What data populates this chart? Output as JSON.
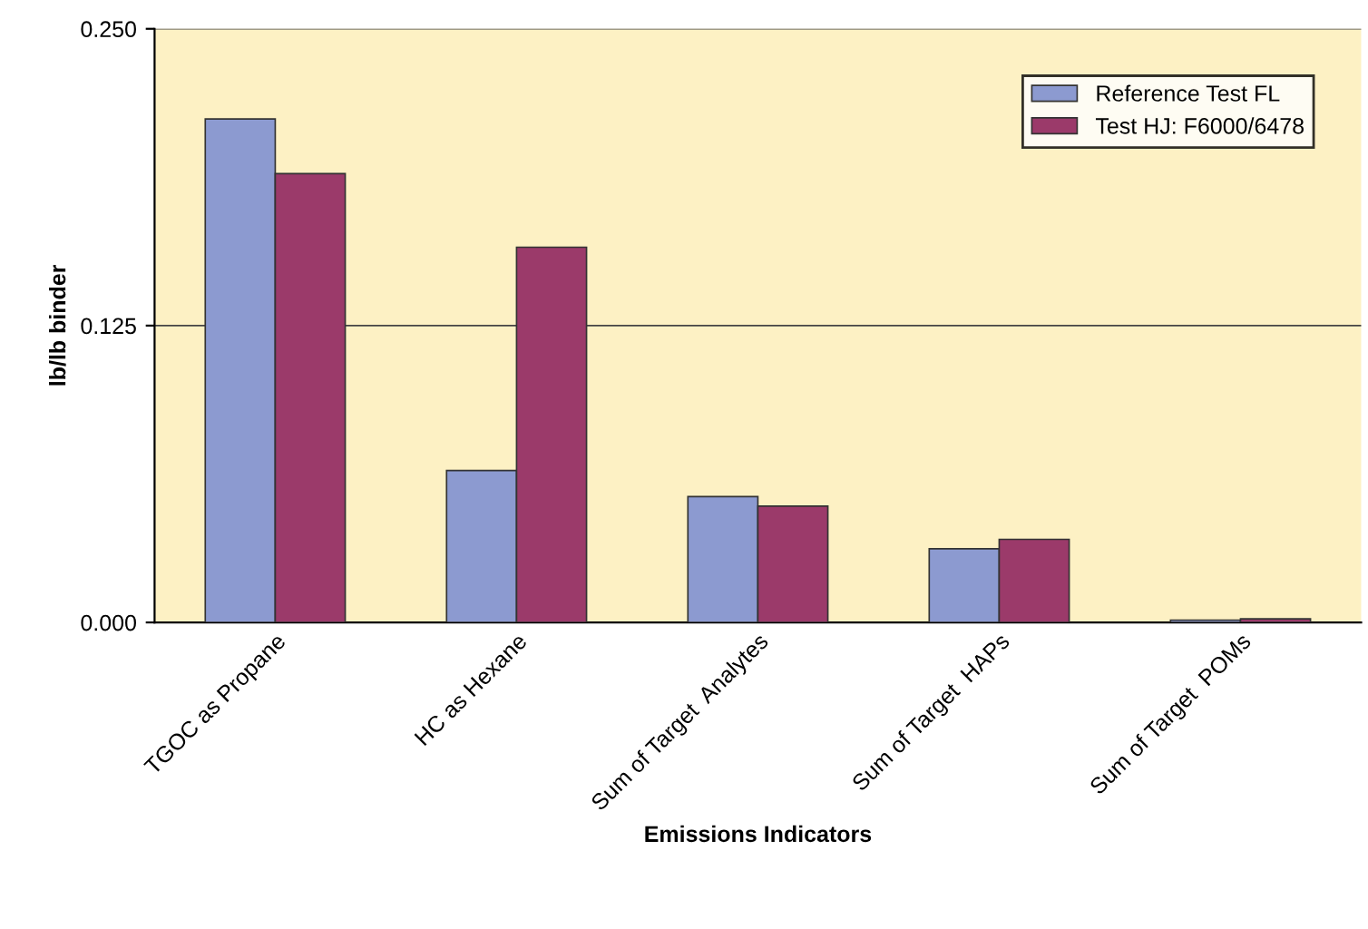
{
  "chart_data": {
    "type": "bar",
    "xlabel": "Emissions Indicators",
    "ylabel": "lb/lb binder",
    "categories": [
      "TGOC as Propane",
      "HC as Hexane",
      "Sum of Target  Analytes",
      "Sum of Target  HAPs",
      "Sum of Target  POMs"
    ],
    "series": [
      {
        "name": "Reference Test FL",
        "color": "#8c9ad0",
        "values": [
          0.212,
          0.064,
          0.053,
          0.031,
          0.001
        ]
      },
      {
        "name": "Test HJ: F6000/6478",
        "color": "#9b3a6a",
        "values": [
          0.189,
          0.158,
          0.049,
          0.035,
          0.0015
        ]
      }
    ],
    "ylim": [
      0,
      0.25
    ],
    "yticks": [
      {
        "value": 0,
        "label": "0.000"
      },
      {
        "value": 0.125,
        "label": "0.125"
      },
      {
        "value": 0.25,
        "label": "0.250"
      }
    ],
    "grid": "y",
    "legend": "top right"
  }
}
